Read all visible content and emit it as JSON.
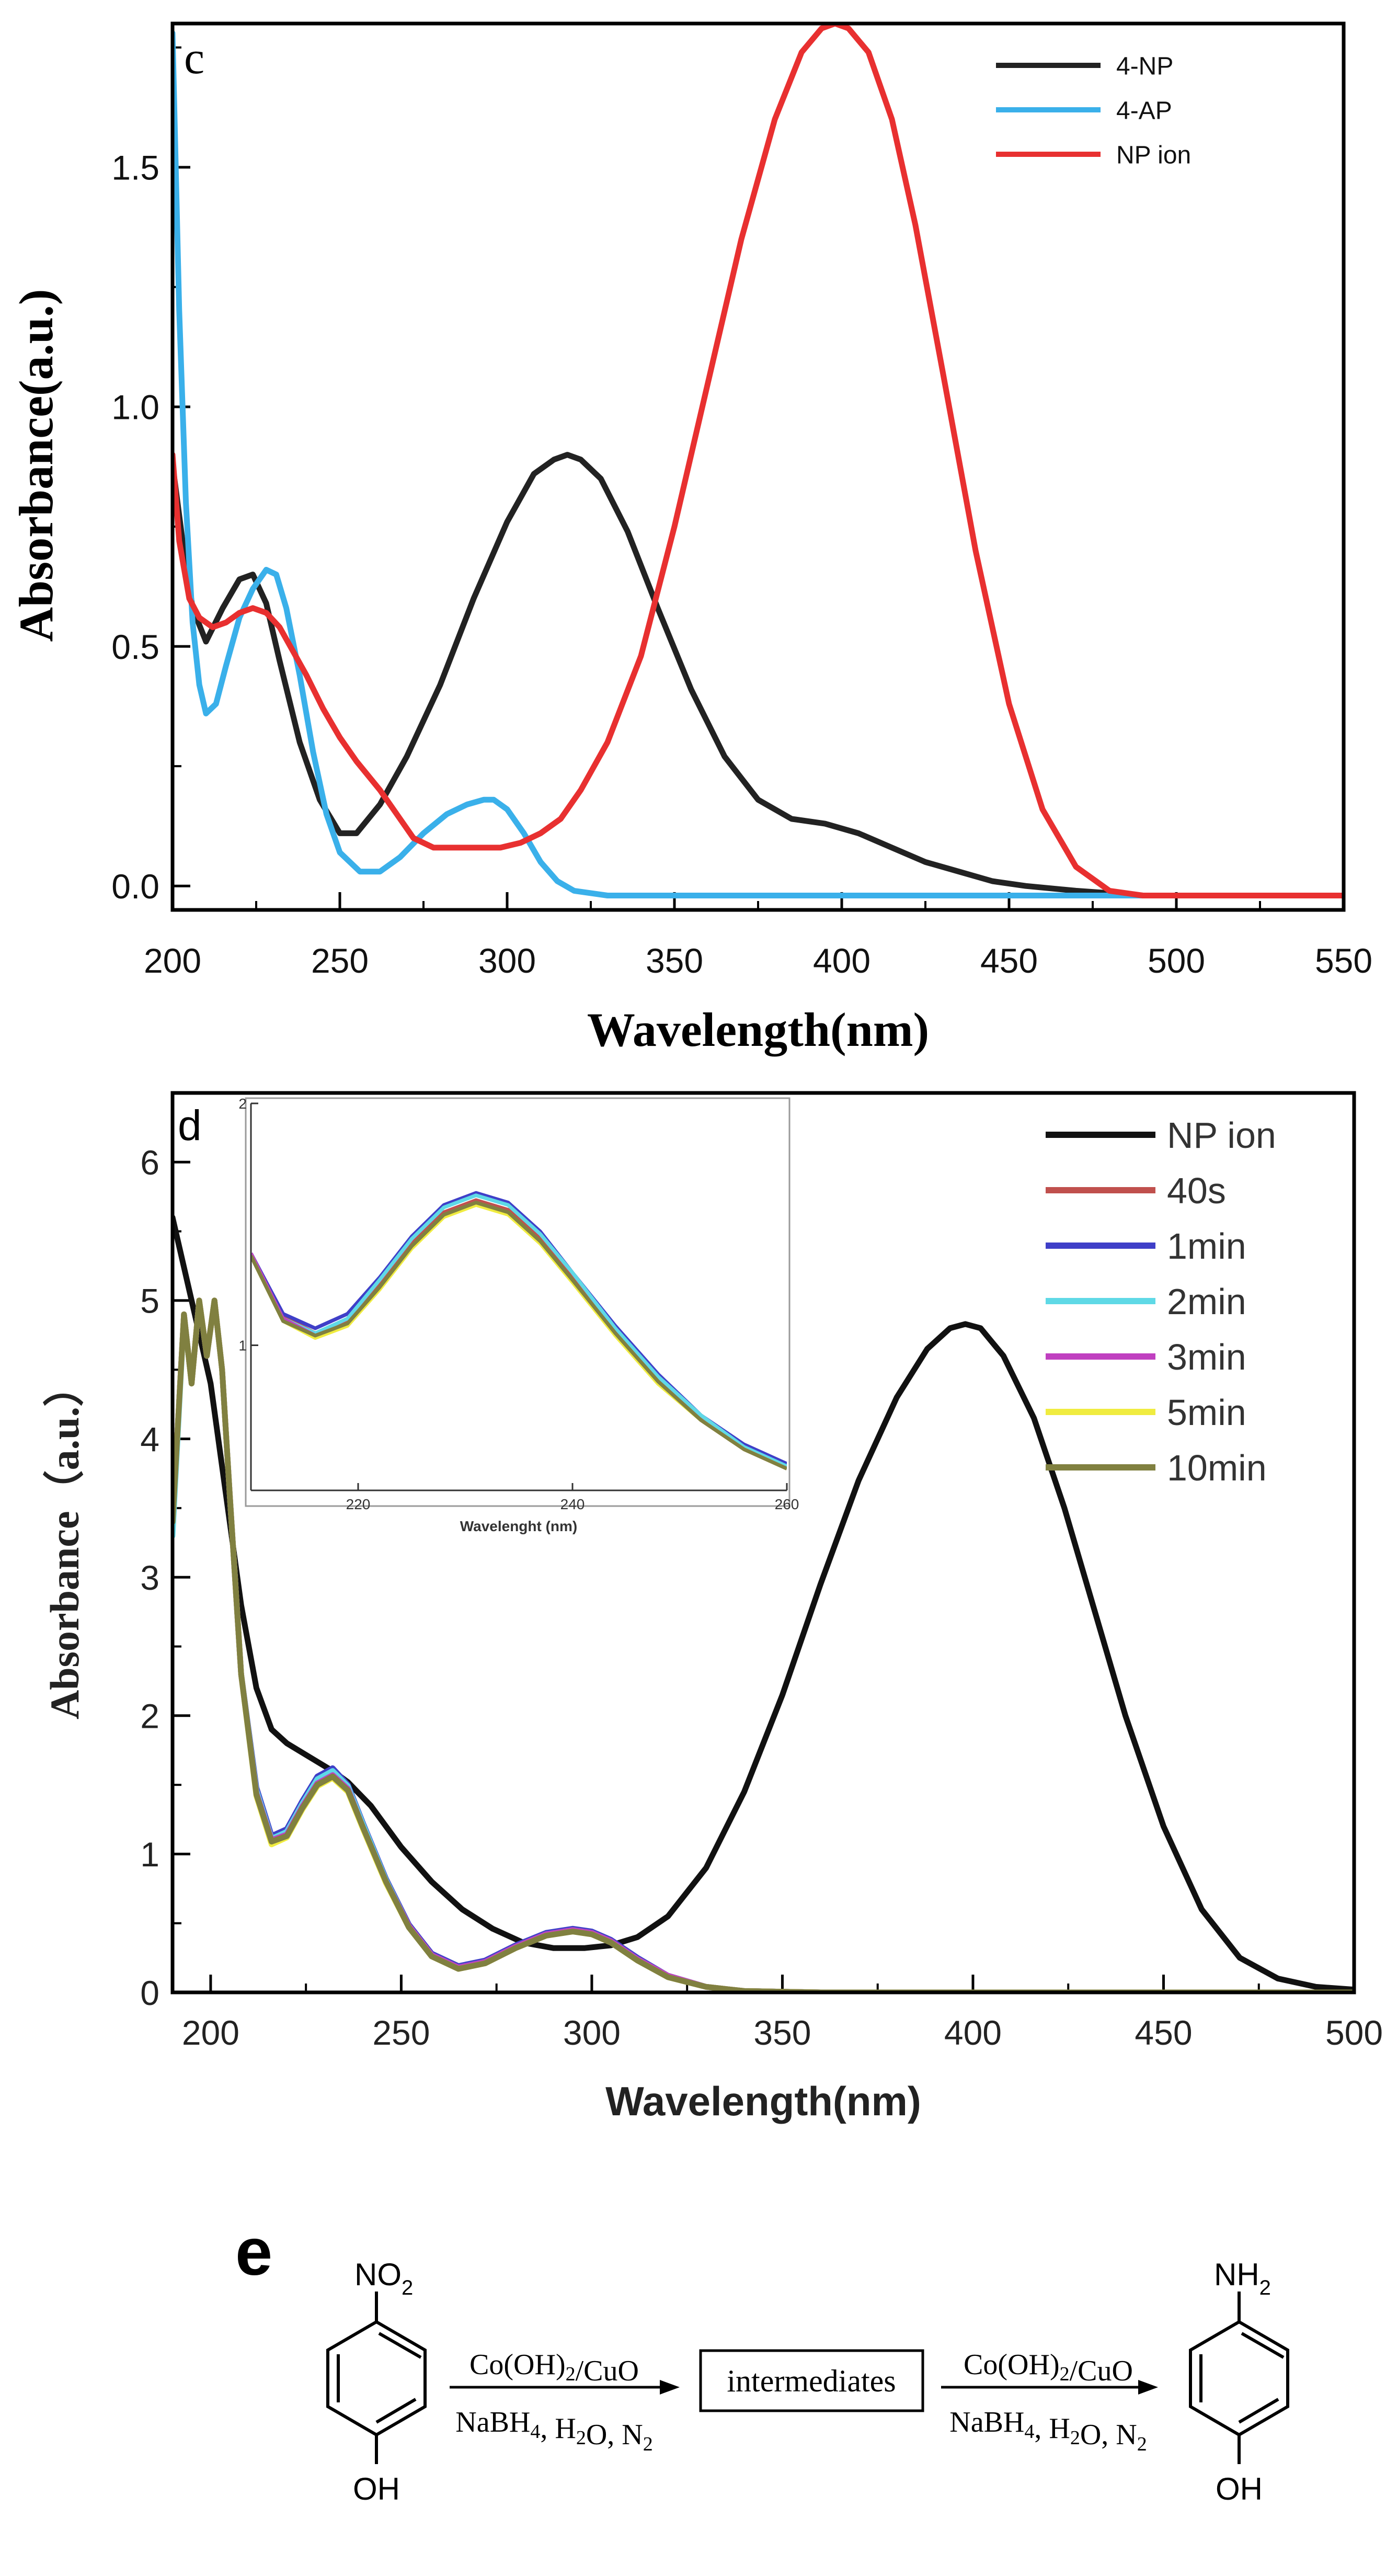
{
  "chart_data": [
    {
      "type": "line",
      "panel_label": "c",
      "xlabel": "Wavelength(nm)",
      "ylabel": "Absorbance(a.u.)",
      "xlim": [
        200,
        550
      ],
      "ylim": [
        -0.05,
        1.8
      ],
      "xticks": [
        "200",
        "250",
        "300",
        "350",
        "400",
        "450",
        "500",
        "550"
      ],
      "yticks": [
        "0.0",
        "0.5",
        "1.0",
        "1.5"
      ],
      "legend_position": "top-right",
      "series": [
        {
          "name": "4-NP",
          "color": "#222222",
          "x": [
            200,
            203,
            206,
            210,
            215,
            220,
            224,
            228,
            232,
            238,
            244,
            250,
            255,
            262,
            270,
            280,
            290,
            300,
            308,
            314,
            318,
            322,
            328,
            336,
            345,
            355,
            365,
            375,
            385,
            395,
            405,
            415,
            425,
            435,
            445,
            455,
            470,
            490,
            520,
            550
          ],
          "y": [
            0.88,
            0.72,
            0.58,
            0.51,
            0.58,
            0.64,
            0.65,
            0.59,
            0.47,
            0.3,
            0.18,
            0.11,
            0.11,
            0.17,
            0.27,
            0.42,
            0.6,
            0.76,
            0.86,
            0.89,
            0.9,
            0.89,
            0.85,
            0.74,
            0.58,
            0.41,
            0.27,
            0.18,
            0.14,
            0.13,
            0.11,
            0.08,
            0.05,
            0.03,
            0.01,
            0.0,
            -0.01,
            -0.02,
            -0.02,
            -0.02
          ]
        },
        {
          "name": "4-AP",
          "color": "#3ab0ea",
          "x": [
            200,
            202,
            204,
            206,
            208,
            210,
            213,
            216,
            220,
            224,
            228,
            231,
            234,
            238,
            242,
            246,
            250,
            256,
            262,
            268,
            275,
            282,
            288,
            293,
            296,
            300,
            305,
            310,
            315,
            320,
            330,
            345,
            360,
            400,
            450,
            500,
            550
          ],
          "y": [
            1.78,
            1.2,
            0.8,
            0.55,
            0.42,
            0.36,
            0.38,
            0.46,
            0.56,
            0.62,
            0.66,
            0.65,
            0.58,
            0.44,
            0.28,
            0.15,
            0.07,
            0.03,
            0.03,
            0.06,
            0.11,
            0.15,
            0.17,
            0.18,
            0.18,
            0.16,
            0.11,
            0.05,
            0.01,
            -0.01,
            -0.02,
            -0.02,
            -0.02,
            -0.02,
            -0.02,
            -0.02,
            -0.02
          ]
        },
        {
          "name": "NP ion",
          "color": "#e83030",
          "x": [
            200,
            202,
            205,
            208,
            212,
            216,
            220,
            224,
            228,
            232,
            236,
            240,
            245,
            250,
            255,
            262,
            268,
            272,
            278,
            285,
            292,
            298,
            304,
            310,
            316,
            322,
            330,
            340,
            350,
            360,
            370,
            380,
            388,
            394,
            398,
            402,
            408,
            415,
            422,
            430,
            440,
            450,
            460,
            470,
            480,
            490,
            500,
            520,
            550
          ],
          "y": [
            0.9,
            0.72,
            0.6,
            0.56,
            0.54,
            0.55,
            0.57,
            0.58,
            0.57,
            0.54,
            0.49,
            0.44,
            0.37,
            0.31,
            0.26,
            0.2,
            0.14,
            0.1,
            0.08,
            0.08,
            0.08,
            0.08,
            0.09,
            0.11,
            0.14,
            0.2,
            0.3,
            0.48,
            0.75,
            1.05,
            1.35,
            1.6,
            1.74,
            1.79,
            1.8,
            1.79,
            1.74,
            1.6,
            1.38,
            1.08,
            0.7,
            0.38,
            0.16,
            0.04,
            -0.01,
            -0.02,
            -0.02,
            -0.02,
            -0.02
          ]
        }
      ]
    },
    {
      "type": "line",
      "panel_label": "d",
      "xlabel": "Wavelength(nm)",
      "ylabel": "Absorbance（a.u.）",
      "xlim": [
        190,
        500
      ],
      "ylim": [
        0,
        6.5
      ],
      "xticks": [
        "200",
        "250",
        "300",
        "350",
        "400",
        "450",
        "500"
      ],
      "yticks": [
        "0",
        "1",
        "2",
        "3",
        "4",
        "5",
        "6"
      ],
      "legend_position": "top-right",
      "series": [
        {
          "name": "NP ion",
          "color": "#111111",
          "x": [
            190,
            195,
            200,
            204,
            208,
            212,
            216,
            220,
            226,
            232,
            236,
            242,
            250,
            258,
            266,
            274,
            282,
            290,
            298,
            305,
            312,
            320,
            330,
            340,
            350,
            360,
            370,
            380,
            388,
            394,
            398,
            402,
            408,
            416,
            424,
            432,
            440,
            450,
            460,
            470,
            480,
            490,
            500
          ],
          "y": [
            5.6,
            5.0,
            4.4,
            3.6,
            2.8,
            2.2,
            1.9,
            1.8,
            1.7,
            1.6,
            1.52,
            1.35,
            1.05,
            0.8,
            0.6,
            0.46,
            0.36,
            0.32,
            0.32,
            0.34,
            0.4,
            0.55,
            0.9,
            1.45,
            2.15,
            2.95,
            3.7,
            4.3,
            4.65,
            4.8,
            4.83,
            4.8,
            4.6,
            4.15,
            3.5,
            2.75,
            2.0,
            1.2,
            0.6,
            0.25,
            0.1,
            0.04,
            0.02
          ]
        },
        {
          "name": "40s",
          "color": "#c0504d",
          "x": [
            190,
            193,
            195,
            197,
            199,
            201,
            203,
            205,
            208,
            212,
            216,
            220,
            224,
            228,
            232,
            236,
            240,
            246,
            252,
            258,
            265,
            272,
            280,
            288,
            295,
            300,
            305,
            312,
            320,
            330,
            340,
            360,
            400,
            450,
            500
          ],
          "y": [
            3.4,
            4.9,
            4.4,
            5.0,
            4.6,
            5.0,
            4.5,
            3.6,
            2.3,
            1.45,
            1.1,
            1.15,
            1.35,
            1.52,
            1.58,
            1.48,
            1.2,
            0.8,
            0.48,
            0.27,
            0.18,
            0.22,
            0.33,
            0.42,
            0.45,
            0.43,
            0.37,
            0.24,
            0.12,
            0.04,
            0.01,
            0.0,
            0.0,
            0.0,
            0.0
          ]
        },
        {
          "name": "1min",
          "color": "#3f3fc8",
          "x": [
            190,
            193,
            195,
            197,
            199,
            201,
            203,
            205,
            208,
            212,
            216,
            220,
            224,
            228,
            232,
            236,
            240,
            246,
            252,
            258,
            265,
            272,
            280,
            288,
            295,
            300,
            305,
            312,
            320,
            330,
            340,
            360,
            400,
            450,
            500
          ],
          "y": [
            3.4,
            4.9,
            4.4,
            5.0,
            4.6,
            5.0,
            4.5,
            3.6,
            2.3,
            1.48,
            1.13,
            1.18,
            1.38,
            1.56,
            1.62,
            1.5,
            1.22,
            0.82,
            0.49,
            0.28,
            0.19,
            0.23,
            0.34,
            0.43,
            0.46,
            0.44,
            0.38,
            0.25,
            0.12,
            0.04,
            0.01,
            0.0,
            0.0,
            0.0,
            0.0
          ]
        },
        {
          "name": "2min",
          "color": "#5fd9e6",
          "x": [
            190,
            193,
            195,
            197,
            199,
            201,
            203,
            205,
            208,
            212,
            216,
            220,
            224,
            228,
            232,
            236,
            240,
            246,
            252,
            258,
            265,
            272,
            280,
            288,
            295,
            300,
            305,
            312,
            320,
            330,
            340,
            360,
            400,
            450,
            500
          ],
          "y": [
            3.3,
            4.9,
            4.4,
            5.0,
            4.6,
            5.0,
            4.5,
            3.6,
            2.3,
            1.46,
            1.11,
            1.16,
            1.36,
            1.54,
            1.6,
            1.49,
            1.21,
            0.81,
            0.48,
            0.27,
            0.18,
            0.22,
            0.33,
            0.42,
            0.45,
            0.43,
            0.37,
            0.24,
            0.12,
            0.04,
            0.01,
            0.0,
            0.0,
            0.0,
            0.0
          ]
        },
        {
          "name": "3min",
          "color": "#c040c0",
          "x": [
            190,
            193,
            195,
            197,
            199,
            201,
            203,
            205,
            208,
            212,
            216,
            220,
            224,
            228,
            232,
            236,
            240,
            246,
            252,
            258,
            265,
            272,
            280,
            288,
            295,
            300,
            305,
            312,
            320,
            330,
            340,
            360,
            400,
            450,
            500
          ],
          "y": [
            3.4,
            4.9,
            4.4,
            5.0,
            4.6,
            5.0,
            4.5,
            3.6,
            2.3,
            1.44,
            1.1,
            1.14,
            1.34,
            1.51,
            1.57,
            1.47,
            1.19,
            0.8,
            0.48,
            0.27,
            0.18,
            0.22,
            0.33,
            0.42,
            0.45,
            0.43,
            0.37,
            0.24,
            0.12,
            0.04,
            0.01,
            0.0,
            0.0,
            0.0,
            0.0
          ]
        },
        {
          "name": "5min",
          "color": "#f0ec40",
          "x": [
            190,
            193,
            195,
            197,
            199,
            201,
            203,
            205,
            208,
            212,
            216,
            220,
            224,
            228,
            232,
            236,
            240,
            246,
            252,
            258,
            265,
            272,
            280,
            288,
            295,
            300,
            305,
            312,
            320,
            330,
            340,
            360,
            400,
            450,
            500
          ],
          "y": [
            3.4,
            4.9,
            4.4,
            5.0,
            4.6,
            5.0,
            4.5,
            3.6,
            2.3,
            1.42,
            1.07,
            1.12,
            1.32,
            1.49,
            1.55,
            1.45,
            1.18,
            0.79,
            0.47,
            0.26,
            0.17,
            0.21,
            0.32,
            0.41,
            0.44,
            0.42,
            0.36,
            0.23,
            0.11,
            0.04,
            0.01,
            0.0,
            0.0,
            0.0,
            0.0
          ]
        },
        {
          "name": "10min",
          "color": "#808040",
          "x": [
            190,
            193,
            195,
            197,
            199,
            201,
            203,
            205,
            208,
            212,
            216,
            220,
            224,
            228,
            232,
            236,
            240,
            246,
            252,
            258,
            265,
            272,
            280,
            288,
            295,
            300,
            305,
            312,
            320,
            330,
            340,
            360,
            400,
            450,
            500
          ],
          "y": [
            3.4,
            4.9,
            4.4,
            5.0,
            4.6,
            5.0,
            4.5,
            3.6,
            2.3,
            1.43,
            1.09,
            1.13,
            1.33,
            1.5,
            1.56,
            1.46,
            1.19,
            0.8,
            0.47,
            0.26,
            0.17,
            0.21,
            0.32,
            0.41,
            0.44,
            0.42,
            0.36,
            0.23,
            0.11,
            0.04,
            0.01,
            0.0,
            0.0,
            0.0,
            0.0
          ]
        }
      ],
      "inset": {
        "xlabel": "Wavelenght (nm)",
        "xlim": [
          210,
          260
        ],
        "ylim": [
          0.4,
          2
        ],
        "xticks": [
          "220",
          "240",
          "260"
        ],
        "yticks": [
          "1",
          "2"
        ],
        "x": [
          210,
          213,
          216,
          219,
          222,
          225,
          228,
          231,
          234,
          237,
          240,
          244,
          248,
          252,
          256,
          260
        ],
        "series": [
          {
            "name": "40s",
            "color": "#c0504d",
            "y": [
              1.38,
              1.12,
              1.05,
              1.1,
              1.25,
              1.42,
              1.55,
              1.6,
              1.56,
              1.44,
              1.28,
              1.06,
              0.86,
              0.7,
              0.58,
              0.5
            ]
          },
          {
            "name": "1min",
            "color": "#3f3fc8",
            "y": [
              1.38,
              1.13,
              1.07,
              1.13,
              1.28,
              1.45,
              1.58,
              1.63,
              1.59,
              1.47,
              1.3,
              1.08,
              0.88,
              0.71,
              0.59,
              0.51
            ]
          },
          {
            "name": "2min",
            "color": "#5fd9e6",
            "y": [
              1.37,
              1.11,
              1.05,
              1.11,
              1.27,
              1.44,
              1.57,
              1.62,
              1.58,
              1.46,
              1.3,
              1.07,
              0.87,
              0.71,
              0.58,
              0.5
            ]
          },
          {
            "name": "3min",
            "color": "#c040c0",
            "y": [
              1.38,
              1.11,
              1.04,
              1.09,
              1.24,
              1.41,
              1.54,
              1.59,
              1.55,
              1.43,
              1.27,
              1.05,
              0.85,
              0.69,
              0.57,
              0.49
            ]
          },
          {
            "name": "5min",
            "color": "#f0ec40",
            "y": [
              1.37,
              1.1,
              1.03,
              1.08,
              1.23,
              1.4,
              1.53,
              1.58,
              1.54,
              1.42,
              1.26,
              1.04,
              0.84,
              0.69,
              0.57,
              0.49
            ]
          },
          {
            "name": "10min",
            "color": "#808040",
            "y": [
              1.37,
              1.1,
              1.04,
              1.09,
              1.24,
              1.41,
              1.54,
              1.59,
              1.55,
              1.43,
              1.27,
              1.05,
              0.85,
              0.69,
              0.57,
              0.49
            ]
          }
        ]
      }
    }
  ],
  "scheme": {
    "panel_label": "e",
    "reactant_top_group": "NO",
    "reactant_top_subscript": "2",
    "reactant_bottom_group": "OH",
    "arrow1_top": "Co(OH)2/CuO",
    "arrow1_bottom": "NaBH4, H2O, N2",
    "intermediate_label": "intermediates",
    "arrow2_top": "Co(OH)2/CuO",
    "arrow2_bottom": "NaBH4, H2O, N2",
    "product_top_group": "NH",
    "product_top_subscript": "2",
    "product_bottom_group": "OH"
  }
}
